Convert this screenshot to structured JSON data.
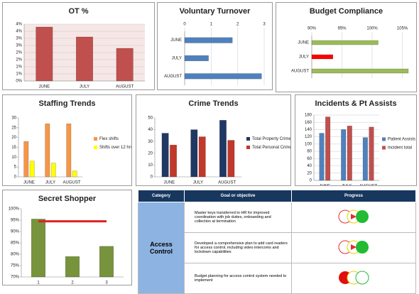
{
  "chart_data": [
    {
      "type": "bar",
      "title": "OT %",
      "categories": [
        "JUNE",
        "JULY",
        "AUGUST"
      ],
      "values": [
        3.8,
        3.1,
        2.3
      ],
      "color": "#c0504d",
      "ylim": [
        0,
        4
      ],
      "yticks": [
        {
          "value": 0,
          "label": "0%"
        },
        {
          "value": 0.5,
          "label": "1%"
        },
        {
          "value": 1,
          "label": "1%"
        },
        {
          "value": 1.5,
          "label": "2%"
        },
        {
          "value": 2,
          "label": "2%"
        },
        {
          "value": 2.5,
          "label": "3%"
        },
        {
          "value": 3,
          "label": "3%"
        },
        {
          "value": 3.5,
          "label": "4%"
        },
        {
          "value": 4,
          "label": "4%"
        }
      ],
      "grid": true
    },
    {
      "type": "hbar",
      "title": "Voluntary Turnover",
      "categories": [
        "JUNE",
        "JULY",
        "AUGUST"
      ],
      "values": [
        1.8,
        0.9,
        2.9
      ],
      "color": "#4f81bd",
      "xlim": [
        0,
        3
      ],
      "xticks": [
        0,
        1,
        2,
        3
      ],
      "grid": true
    },
    {
      "type": "hbar",
      "title": "Budget Compliance",
      "categories": [
        "JUNE",
        "JULY",
        "AUGUST"
      ],
      "values": [
        101,
        93.5,
        106
      ],
      "colors": [
        "#9bbb59",
        "#ff0000",
        "#9bbb59"
      ],
      "xlim": [
        90,
        106
      ],
      "xticks": [
        {
          "value": 90,
          "label": "90%"
        },
        {
          "value": 95,
          "label": "95%"
        },
        {
          "value": 100,
          "label": "100%"
        },
        {
          "value": 105,
          "label": "105%"
        }
      ],
      "grid": true
    },
    {
      "type": "bar",
      "title": "Staffing Trends",
      "categories": [
        "JUNE",
        "JULY",
        "AUGUST"
      ],
      "series": [
        {
          "name": "Flex shifts",
          "color": "#f79646",
          "values": [
            18,
            27,
            27
          ]
        },
        {
          "name": "Shifts over 12 hrs",
          "color": "#ffff00",
          "values": [
            8,
            7,
            3
          ]
        }
      ],
      "ylim": [
        0,
        30
      ],
      "yticks": [
        0,
        5,
        10,
        15,
        20,
        25,
        30
      ],
      "legend": "right"
    },
    {
      "type": "bar",
      "title": "Crime Trends",
      "categories": [
        "JUNE",
        "JULY",
        "AUGUST"
      ],
      "series": [
        {
          "name": "Total Property Crime",
          "color": "#1f3864",
          "values": [
            37,
            40,
            48
          ]
        },
        {
          "name": "Total Personal Crimes",
          "color": "#c0392b",
          "values": [
            27,
            34,
            31
          ]
        }
      ],
      "ylim": [
        0,
        50
      ],
      "yticks": [
        0,
        10,
        20,
        30,
        40,
        50
      ],
      "legend": "right"
    },
    {
      "type": "bar",
      "title": "Incidents & Pt Assists",
      "categories": [
        "JUNE",
        "JULY",
        "AUGUST"
      ],
      "series": [
        {
          "name": "Patient Assists",
          "color": "#4f81bd",
          "values": [
            130,
            140,
            118
          ]
        },
        {
          "name": "Incident total",
          "color": "#c0504d",
          "values": [
            175,
            150,
            147
          ]
        }
      ],
      "ylim": [
        0,
        180
      ],
      "yticks": [
        0,
        20,
        40,
        60,
        80,
        100,
        120,
        140,
        160,
        180
      ],
      "legend": "right",
      "grid": true
    },
    {
      "type": "bar",
      "title": "Secret Shopper",
      "categories": [
        "1",
        "2",
        "3"
      ],
      "values": [
        95.5,
        79,
        83.5
      ],
      "color": "#77933c",
      "target": 94.5,
      "target_color": "#e02020",
      "ylim": [
        70,
        100
      ],
      "yticks": [
        {
          "value": 70,
          "label": "70%"
        },
        {
          "value": 75,
          "label": "75%"
        },
        {
          "value": 80,
          "label": "80%"
        },
        {
          "value": 85,
          "label": "85%"
        },
        {
          "value": 90,
          "label": "90%"
        },
        {
          "value": 95,
          "label": "95%"
        },
        {
          "value": 100,
          "label": "100%"
        }
      ]
    }
  ],
  "table": {
    "header": [
      "Category",
      "Goal or objective",
      "Progress"
    ],
    "category": "Access Control",
    "rows": [
      "Master keys transferred to HR for improved coordination with job duties, onboarding and collection at termination",
      "Developed a comprehensive plan to add card readers for access control, including video intercoms and lockdown capabilities",
      "Budget planning for access control system needed to implement"
    ]
  }
}
